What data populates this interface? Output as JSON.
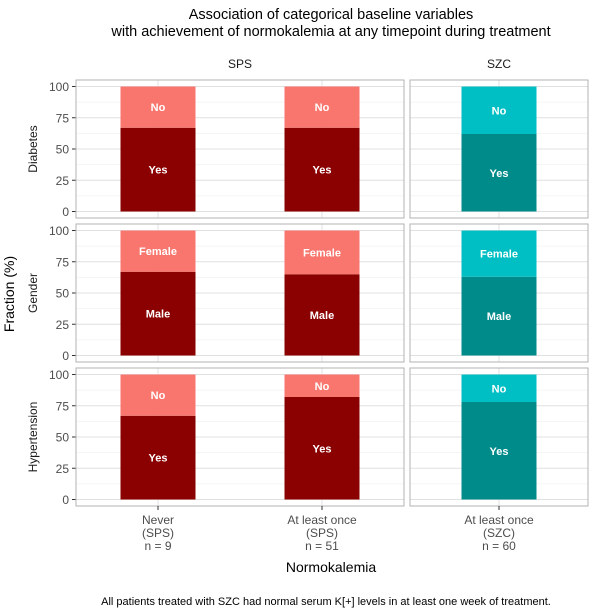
{
  "chart_data": {
    "type": "bar",
    "stacked": true,
    "title": "Association of categorical baseline variables",
    "subtitle": "with achievement of normokalemia at any timepoint during treatment",
    "xlabel": "Normokalemia",
    "ylabel": "Fraction (%)",
    "caption": "All patients treated with SZC had normal serum K[+] levels in at least one week of treatment.",
    "ylim": [
      0,
      100
    ],
    "yticks": [
      "0",
      "25",
      "50",
      "75",
      "100"
    ],
    "grid": true,
    "legend": "none",
    "column_facets": [
      {
        "label": "SPS",
        "categories": [
          "Never\n(SPS)\nn = 9",
          "At least once\n(SPS)\nn = 51"
        ]
      },
      {
        "label": "SZC",
        "categories": [
          "At least once\n(SZC)\nn = 60"
        ]
      }
    ],
    "row_facets": [
      {
        "label": "Diabetes",
        "bars": [
          [
            {
              "label": "Yes",
              "value": 67
            },
            {
              "label": "No",
              "value": 33
            }
          ],
          [
            {
              "label": "Yes",
              "value": 67
            },
            {
              "label": "No",
              "value": 33
            }
          ],
          [
            {
              "label": "Yes",
              "value": 62
            },
            {
              "label": "No",
              "value": 38
            }
          ]
        ]
      },
      {
        "label": "Gender",
        "bars": [
          [
            {
              "label": "Male",
              "value": 67
            },
            {
              "label": "Female",
              "value": 33
            }
          ],
          [
            {
              "label": "Male",
              "value": 65
            },
            {
              "label": "Female",
              "value": 35
            }
          ],
          [
            {
              "label": "Male",
              "value": 63
            },
            {
              "label": "Female",
              "value": 37
            }
          ]
        ]
      },
      {
        "label": "Hypertension",
        "bars": [
          [
            {
              "label": "Yes",
              "value": 67
            },
            {
              "label": "No",
              "value": 33
            }
          ],
          [
            {
              "label": "Yes",
              "value": 82
            },
            {
              "label": "No",
              "value": 18
            }
          ],
          [
            {
              "label": "Yes",
              "value": 78
            },
            {
              "label": "No",
              "value": 22
            }
          ]
        ]
      }
    ],
    "colors": {
      "SPS": {
        "bottom": "#8b0000",
        "top": "#f8766d"
      },
      "SZC": {
        "bottom": "#008b8b",
        "top": "#00bfc4"
      }
    }
  }
}
